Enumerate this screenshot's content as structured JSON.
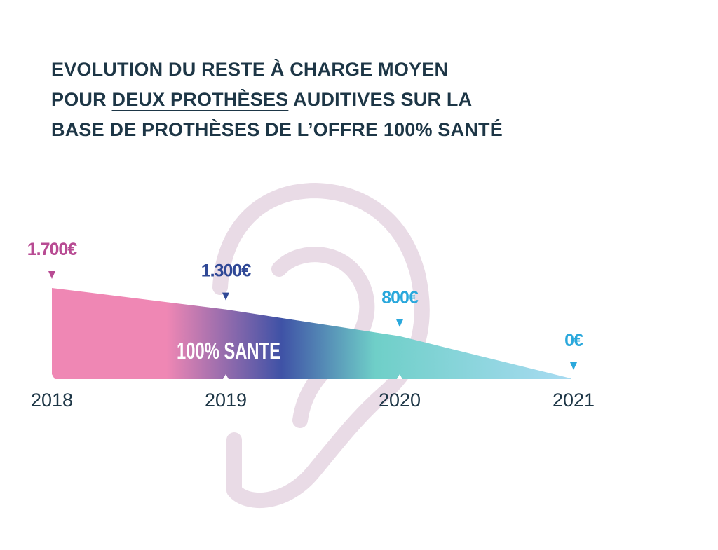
{
  "title": {
    "line1": "EVOLUTION DU RESTE À CHARGE MOYEN",
    "line2_prefix": "POUR ",
    "line2_emphasis": "DEUX PROTHÈSES",
    "line2_suffix": " AUDITIVES SUR LA",
    "line3": "BASE DE PROTHÈSES DE L’OFFRE 100% SANTÉ"
  },
  "chart_data": {
    "type": "area",
    "categories": [
      "2018",
      "2019",
      "2020",
      "2021"
    ],
    "values": [
      1700,
      1300,
      800,
      0
    ],
    "value_labels": [
      "1.700€",
      "1.300€",
      "800€",
      "0€"
    ],
    "ylim": [
      0,
      1700
    ],
    "grid": false,
    "annotation": "100% SANTE",
    "label_colors": [
      "#b84b93",
      "#2f4896",
      "#2aa8dc",
      "#2aa8dc"
    ],
    "gradient_colors": [
      "#ef87b4",
      "#3f52a6",
      "#6fcfc8",
      "#a9dbf2"
    ],
    "background_icon": "ear-icon"
  }
}
